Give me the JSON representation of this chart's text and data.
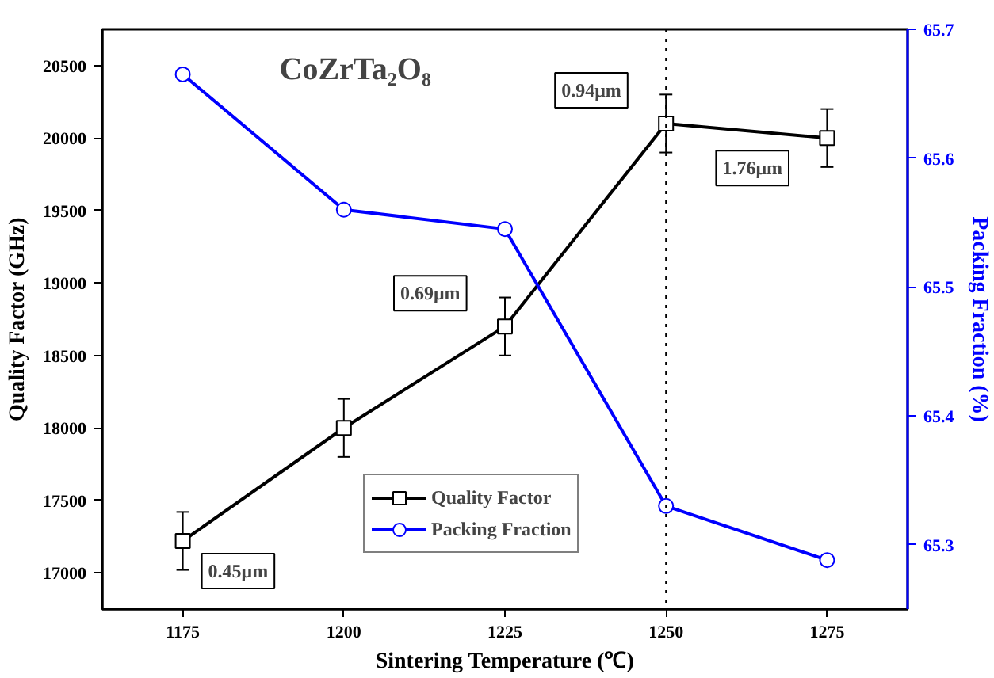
{
  "chart_data": {
    "type": "line",
    "title": "CoZrTa₂O₈",
    "xlabel": "Sintering Temperature (℃)",
    "ylabel": "Quality Factor (GHz)",
    "y2label": "Packing Fraction (%)",
    "x": [
      1175,
      1200,
      1225,
      1250,
      1275
    ],
    "xlim": [
      1162.5,
      1287.5
    ],
    "xticks": [
      1175,
      1200,
      1225,
      1250,
      1275
    ],
    "ylim": [
      16750,
      20750
    ],
    "yticks": [
      17000,
      17500,
      18000,
      18500,
      19000,
      19500,
      20000,
      20500
    ],
    "y2lim": [
      65.25,
      65.7
    ],
    "y2ticks": [
      65.3,
      65.4,
      65.5,
      65.6,
      65.7
    ],
    "series": [
      {
        "name": "Quality Factor",
        "color": "#000000",
        "marker": "square",
        "values": [
          17220,
          18000,
          18700,
          20100,
          20000
        ],
        "errors": [
          200,
          200,
          200,
          200,
          200
        ]
      },
      {
        "name": "Packing Fraction",
        "color": "#0000ff",
        "marker": "circle",
        "axis": "y2",
        "values": [
          65.665,
          65.56,
          65.545,
          65.33,
          65.288
        ]
      }
    ],
    "annotations": [
      {
        "text": "0.45μm",
        "x": 1175,
        "y": 17220
      },
      {
        "text": "0.69μm",
        "x": 1225,
        "y": 18700
      },
      {
        "text": "0.94μm",
        "x": 1250,
        "y": 20100
      },
      {
        "text": "1.76μm",
        "x": 1275,
        "y": 20000
      }
    ],
    "ref_lines": [
      {
        "axis": "x",
        "value": 1250,
        "color": "#000000",
        "line_style": "dotted"
      }
    ],
    "legend": "bottom",
    "grid": false,
    "line_style": "solid"
  }
}
